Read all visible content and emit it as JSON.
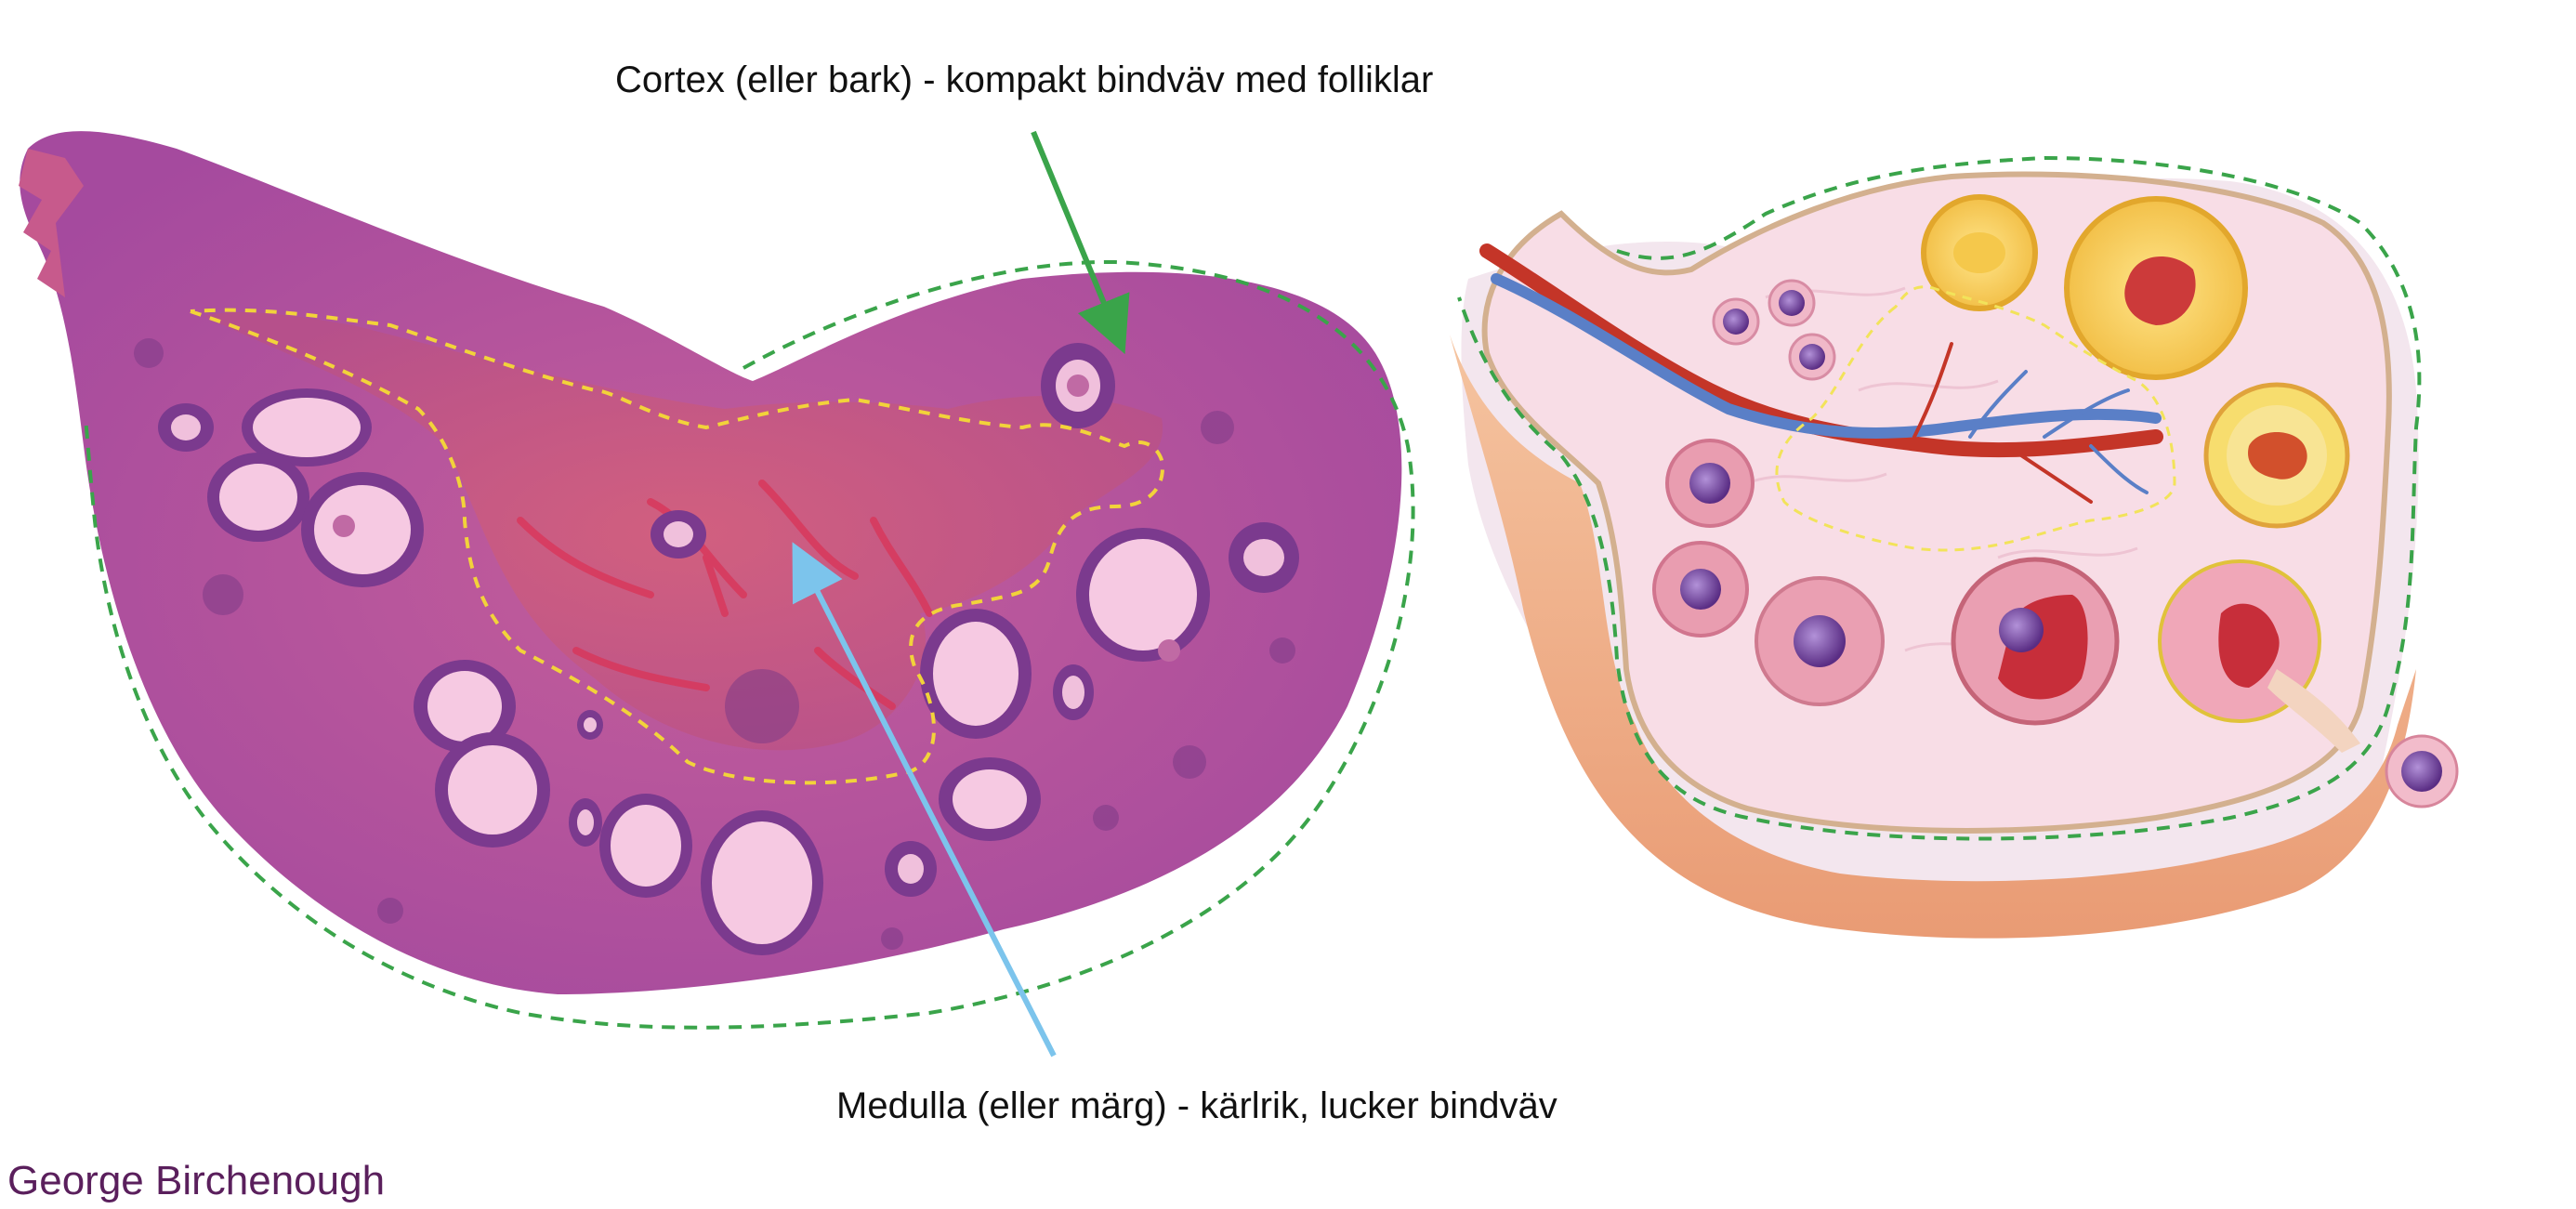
{
  "labels": {
    "cortex": "Cortex (eller bark) - kompakt bindväv med folliklar",
    "medulla": "Medulla (eller märg) - kärlrik, lucker bindväv"
  },
  "author": "George Birchenough",
  "colors": {
    "cortex_boundary": "#3aa44a",
    "medulla_boundary": "#f2d33a",
    "cortex_arrow": "#3aa44a",
    "medulla_arrow": "#7cc4ec",
    "tissue_outer": "#b357a8",
    "tissue_inner": "#c0507e",
    "follicle_lumen": "#f6c9e2",
    "illustration_body": "#f8dde6",
    "illustration_base": "#f2b48e",
    "author_text": "#5a1f5c"
  },
  "icons": {
    "histology": "ovary-histology-section",
    "illustration": "ovary-illustration"
  }
}
